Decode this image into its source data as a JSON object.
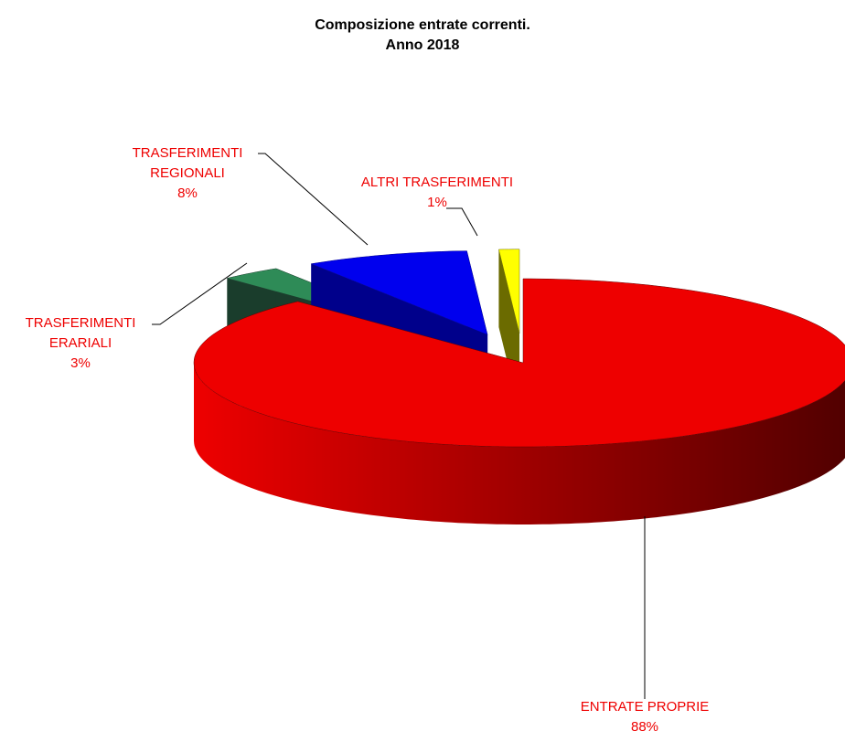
{
  "chart_data": {
    "type": "pie3d",
    "title": [
      "Composizione entrate correnti.",
      "Anno 2018"
    ],
    "categories": [
      "ENTRATE PROPRIE",
      "TRASFERIMENTI\nERARIALI",
      "TRASFERIMENTI\nREGIONALI",
      "ALTRI TRASFERIMENTI"
    ],
    "values": [
      88,
      3,
      8,
      1
    ],
    "value_labels": [
      "88%",
      "3%",
      "8%",
      "1%"
    ],
    "colors": [
      "#ee0000",
      "#2e8b57",
      "#0000ee",
      "#ffff00"
    ],
    "side_colors": [
      "#600000",
      "#1a3d2c",
      "#00008b",
      "#6b6b00"
    ],
    "label_color": "#ee0000"
  }
}
